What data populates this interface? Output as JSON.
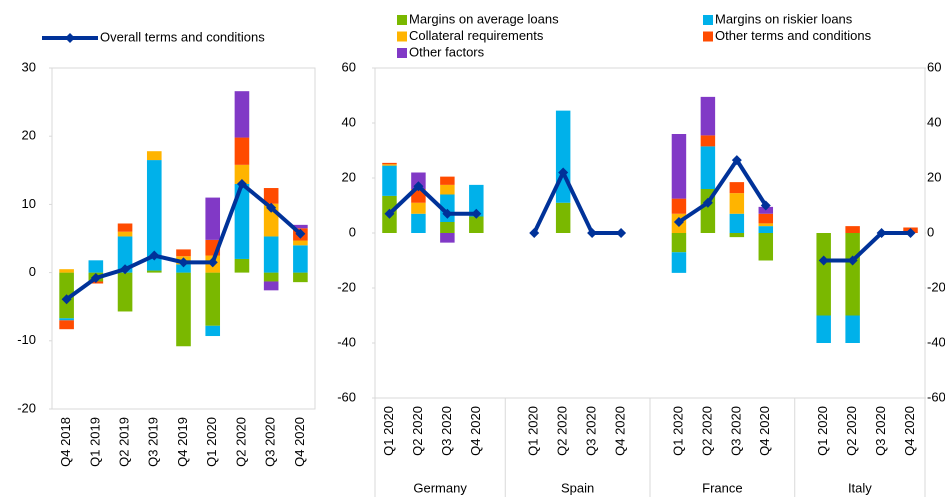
{
  "chart_data": [
    {
      "type": "stacked-bar",
      "categories": [
        "Q4 2018",
        "Q1 2019",
        "Q2 2019",
        "Q3 2019",
        "Q4 2019",
        "Q1 2020",
        "Q2 2020",
        "Q3 2020",
        "Q4 2020"
      ],
      "series": [
        {
          "color": "#7ab800",
          "values": [
            -6.7,
            -1.3,
            -5.7,
            0.3,
            -10.8,
            -7.8,
            2.0,
            -1.3,
            -1.4
          ]
        },
        {
          "color": "#00b1ea",
          "values": [
            -0.3,
            1.8,
            5.3,
            16.2,
            1.2,
            -1.5,
            11.0,
            5.3,
            4.0
          ]
        },
        {
          "color": "#ffb400",
          "values": [
            0.5,
            0,
            0.7,
            1.3,
            1.2,
            2.5,
            2.8,
            4.8,
            0.7
          ]
        },
        {
          "color": "#ff4b00",
          "values": [
            -1.3,
            -0.3,
            1.2,
            0,
            1.0,
            2.3,
            4.0,
            2.3,
            1.8
          ]
        },
        {
          "color": "#8139c6",
          "values": [
            0,
            0,
            0,
            0,
            0,
            6.2,
            6.8,
            -1.3,
            0.5
          ]
        },
        {
          "name": "Overall terms and conditions",
          "type": "line",
          "color": "#003299",
          "values": [
            -3.9,
            -0.8,
            0.5,
            2.5,
            1.5,
            1.5,
            13.0,
            9.5,
            5.7
          ]
        }
      ],
      "ylim": [
        -20,
        30
      ],
      "yticks": [
        -20,
        -10,
        0,
        10,
        20,
        30
      ],
      "legend": "top-left"
    },
    {
      "type": "stacked-bar",
      "categories": [
        "Q1 2020",
        "Q2 2020",
        "Q3 2020",
        "Q4 2020",
        null,
        "Q1 2020",
        "Q2 2020",
        "Q3 2020",
        "Q4 2020",
        null,
        "Q1 2020",
        "Q2 2020",
        "Q3 2020",
        "Q4 2020",
        null,
        "Q1 2020",
        "Q2 2020",
        "Q3 2020",
        "Q4 2020"
      ],
      "groups": [
        "Germany",
        "Spain",
        "France",
        "Italy"
      ],
      "series": [
        {
          "name": "Margins on average loans",
          "color": "#7ab800",
          "values": [
            13.5,
            0,
            4,
            6,
            null,
            0,
            11,
            0,
            0,
            null,
            -7,
            16,
            -1.5,
            -10,
            null,
            -30,
            -30,
            0,
            0
          ]
        },
        {
          "name": "Margins on riskier loans",
          "color": "#00b1ea",
          "values": [
            11,
            7,
            10,
            11.5,
            null,
            0,
            33.5,
            0,
            0,
            null,
            -7.5,
            15.5,
            7,
            2.5,
            null,
            -10,
            -10,
            0,
            0
          ]
        },
        {
          "name": "Collateral requirements",
          "color": "#ffb400",
          "values": [
            0.5,
            4,
            3.5,
            0,
            null,
            0,
            0,
            0,
            0,
            null,
            7,
            0,
            7.5,
            1,
            null,
            0,
            0,
            0,
            0
          ]
        },
        {
          "name": "Other terms and conditions",
          "color": "#ff4b00",
          "values": [
            0.5,
            5,
            3,
            0,
            null,
            0,
            0,
            0,
            0,
            null,
            5.5,
            4,
            4,
            3.5,
            null,
            0,
            2.5,
            0,
            2
          ]
        },
        {
          "name": "Other factors",
          "color": "#8139c6",
          "values": [
            0,
            6,
            -3.5,
            0,
            null,
            0,
            0,
            0,
            0,
            null,
            23.5,
            14,
            0,
            2.5,
            null,
            0,
            0,
            0,
            0
          ]
        },
        {
          "type": "line",
          "color": "#003299",
          "values": [
            7,
            17,
            7,
            7,
            null,
            0,
            22,
            0,
            0,
            null,
            4,
            11,
            26.5,
            10,
            null,
            -10,
            -10,
            0,
            0
          ]
        }
      ],
      "ylim": [
        -60,
        60
      ],
      "yticks": [
        -60,
        -40,
        -20,
        0,
        20,
        40,
        60
      ],
      "y2lim": [
        -60,
        60
      ],
      "y2ticks": [
        -60,
        -40,
        -20,
        0,
        20,
        40,
        60
      ],
      "legend": "top"
    }
  ]
}
